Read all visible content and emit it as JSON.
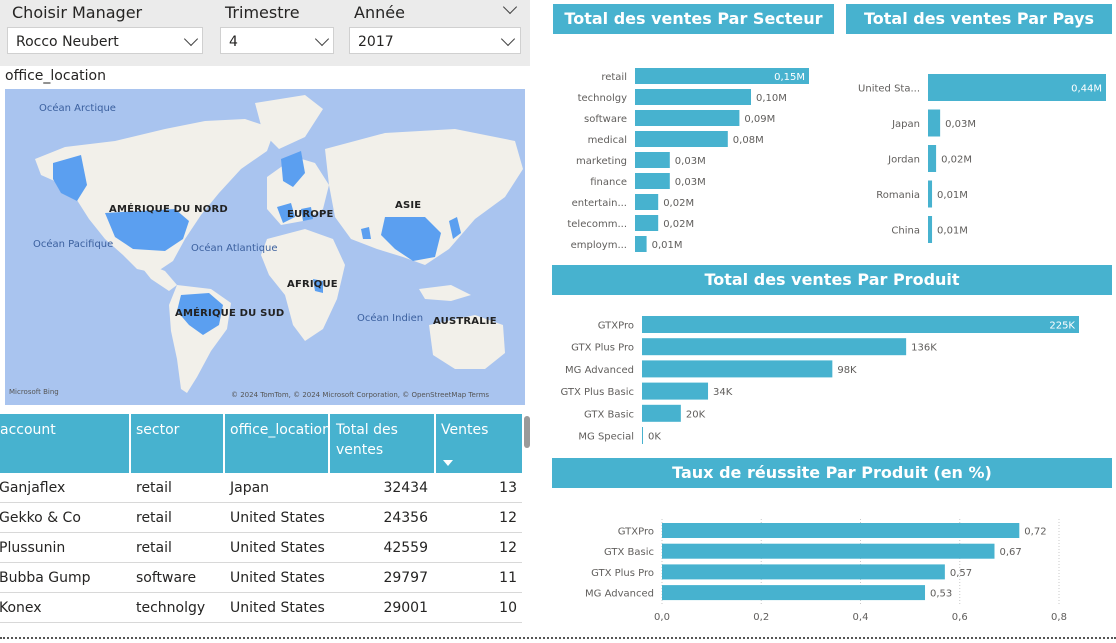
{
  "slicers": {
    "manager": {
      "title": "Choisir Manager",
      "value": "Rocco Neubert"
    },
    "trimestre": {
      "title": "Trimestre",
      "value": "4"
    },
    "annee": {
      "title": "Année",
      "value": "2017"
    }
  },
  "map": {
    "title": "office_location",
    "continents": [
      "AMÉRIQUE DU NORD",
      "EUROPE",
      "ASIE",
      "AFRIQUE",
      "AMÉRIQUE DU SUD",
      "AUSTRALIE"
    ],
    "oceans": [
      "Océan Arctique",
      "Océan Pacifique",
      "Océan Atlantique",
      "Océan Indien"
    ],
    "bing": "Microsoft Bing",
    "copyright": "© 2024 TomTom, © 2024 Microsoft Corporation, © OpenStreetMap  Terms",
    "colors": {
      "ocean": "#a9c4ef",
      "land": "#f2f0ea",
      "highlight": "#5b9ff0"
    }
  },
  "table": {
    "columns": [
      "account",
      "sector",
      "office_location",
      "Total des ventes",
      "Ventes"
    ],
    "rows": [
      [
        "Ganjaflex",
        "retail",
        "Japan",
        "32434",
        "13"
      ],
      [
        "Gekko & Co",
        "retail",
        "United States",
        "24356",
        "12"
      ],
      [
        "Plussunin",
        "retail",
        "United States",
        "42559",
        "12"
      ],
      [
        "Bubba Gump",
        "software",
        "United States",
        "29797",
        "11"
      ],
      [
        "Konex",
        "technolgy",
        "United States",
        "29001",
        "10"
      ]
    ]
  },
  "chart_data": [
    {
      "type": "bar",
      "title": "Total des ventes Par Secteur",
      "categories": [
        "retail",
        "technolgy",
        "software",
        "medical",
        "marketing",
        "finance",
        "entertain...",
        "telecomm...",
        "employm..."
      ],
      "values": [
        0.15,
        0.1,
        0.09,
        0.08,
        0.03,
        0.03,
        0.02,
        0.02,
        0.01
      ],
      "labels": [
        "0,15M",
        "0,10M",
        "0,09M",
        "0,08M",
        "0,03M",
        "0,03M",
        "0,02M",
        "0,02M",
        "0,01M"
      ],
      "color": "#47b2cf"
    },
    {
      "type": "bar",
      "title": "Total des ventes Par Pays",
      "categories": [
        "United Sta...",
        "Japan",
        "Jordan",
        "Romania",
        "China"
      ],
      "values": [
        0.44,
        0.03,
        0.02,
        0.01,
        0.01
      ],
      "labels": [
        "0,44M",
        "0,03M",
        "0,02M",
        "0,01M",
        "0,01M"
      ],
      "color": "#47b2cf"
    },
    {
      "type": "bar",
      "title": "Total des ventes Par Produit",
      "categories": [
        "GTXPro",
        "GTX Plus Pro",
        "MG Advanced",
        "GTX Plus Basic",
        "GTX Basic",
        "MG Special"
      ],
      "values": [
        225,
        136,
        98,
        34,
        20,
        0
      ],
      "labels": [
        "225K",
        "136K",
        "98K",
        "34K",
        "20K",
        "0K"
      ],
      "color": "#47b2cf"
    },
    {
      "type": "bar",
      "title": "Taux de réussite Par Produit (en %)",
      "categories": [
        "GTXPro",
        "GTX Basic",
        "GTX Plus Pro",
        "MG Advanced"
      ],
      "values": [
        0.72,
        0.67,
        0.57,
        0.53
      ],
      "labels": [
        "0,72",
        "0,67",
        "0,57",
        "0,53"
      ],
      "xticks": [
        "0,0",
        "0,2",
        "0,4",
        "0,6",
        "0,8"
      ],
      "xlim": [
        0,
        0.8
      ],
      "grid": true,
      "color": "#47b2cf"
    }
  ]
}
